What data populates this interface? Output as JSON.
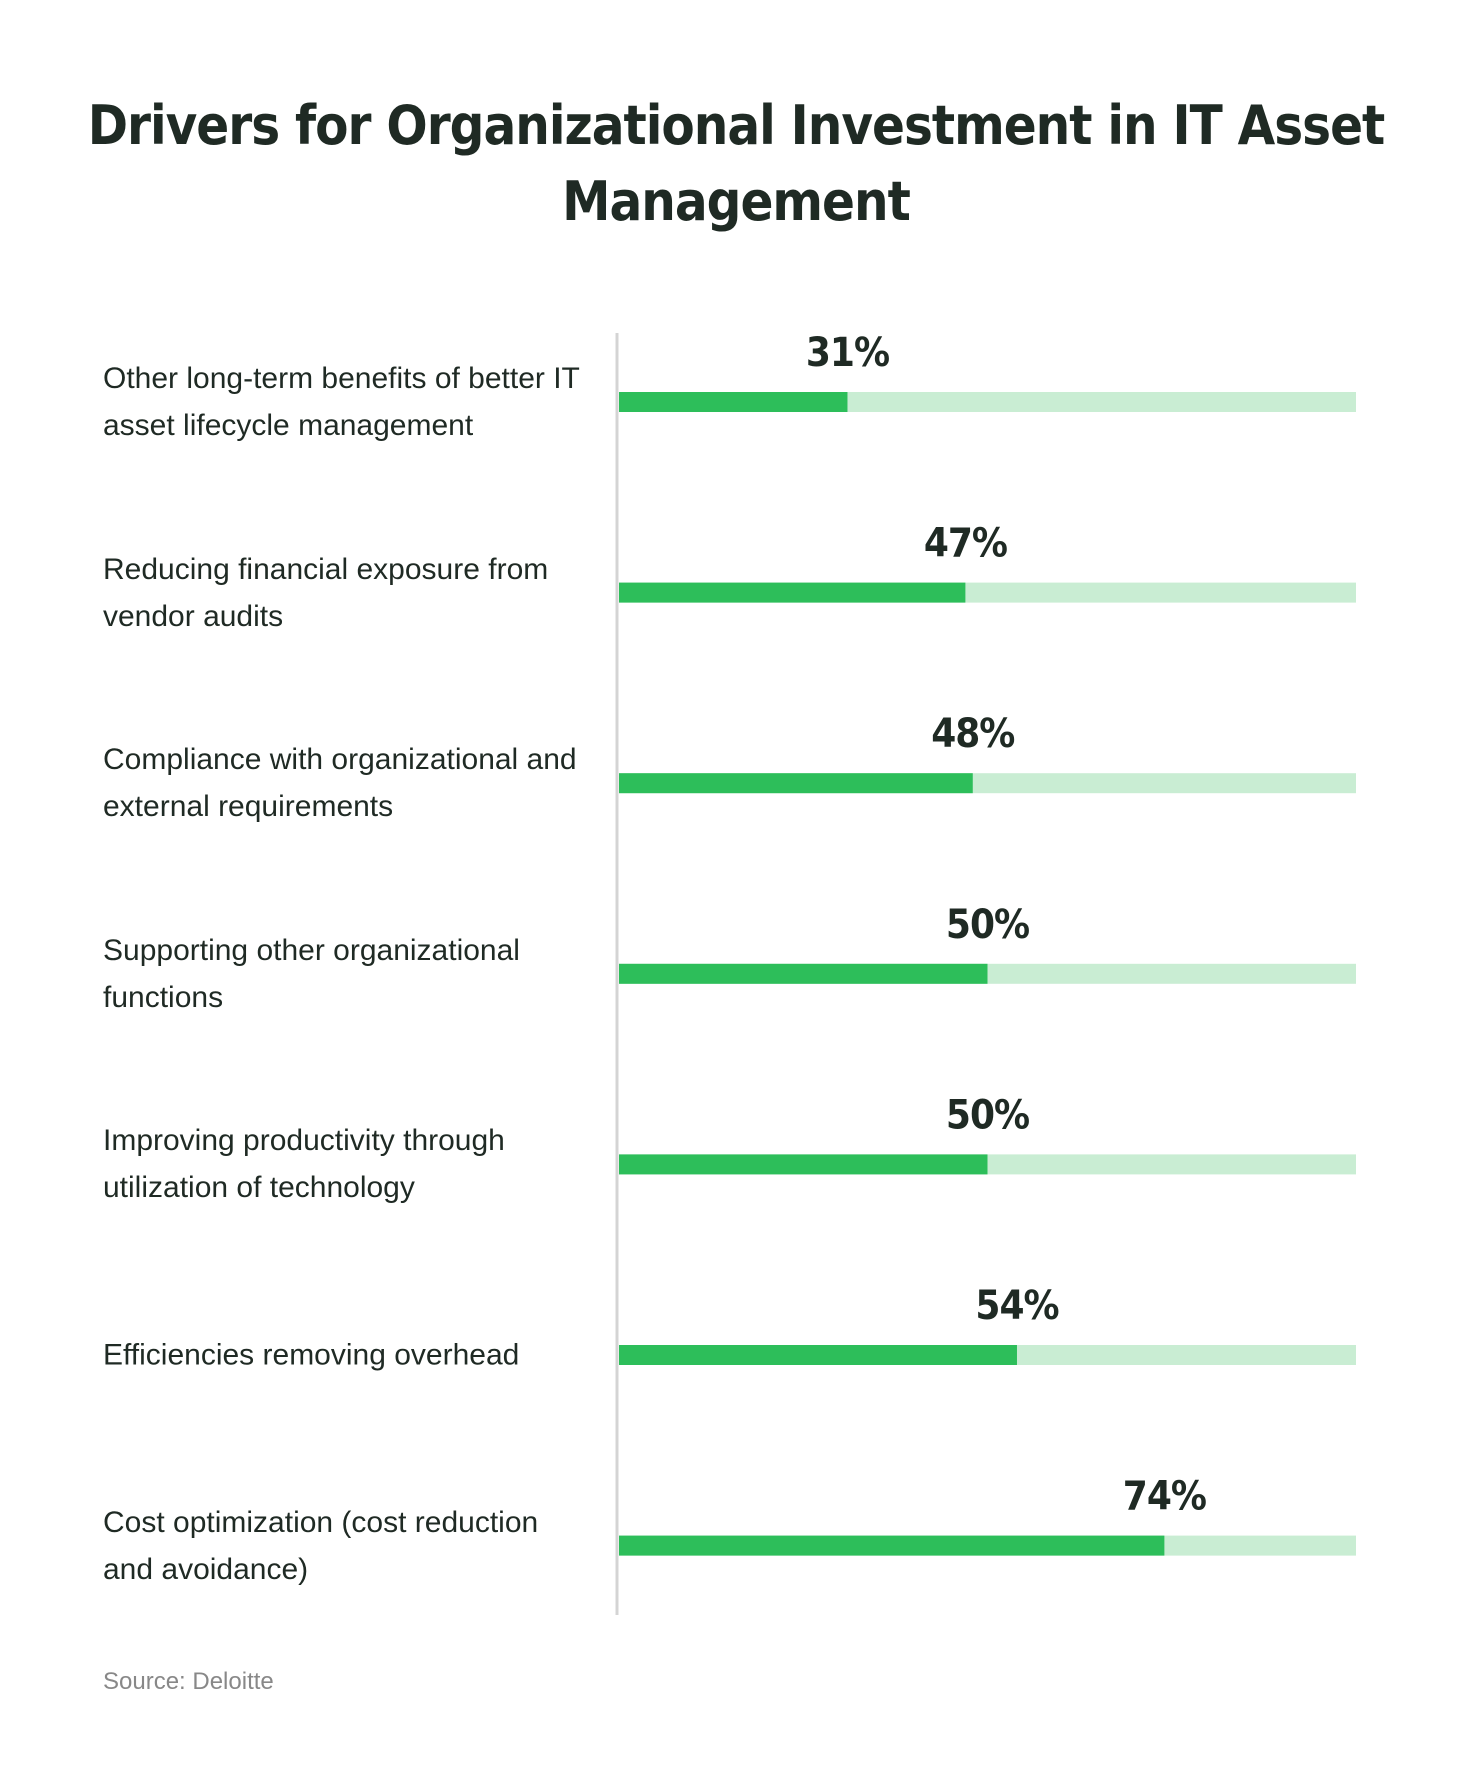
{
  "chart_data": {
    "type": "hbar",
    "title": "Drivers for Organizational Investment in IT Asset Management",
    "categories": [
      "Other long-term benefits of better IT asset lifecycle management",
      "Reducing financial exposure from vendor audits",
      "Compliance with organizational and external requirements",
      "Supporting other organizational functions",
      "Improving productivity through utilization of technology",
      "Efficiencies removing overhead",
      "Cost optimization (cost reduction and avoidance)"
    ],
    "values": [
      31,
      47,
      48,
      50,
      50,
      54,
      74
    ],
    "value_labels": [
      "31%",
      "47%",
      "48%",
      "50%",
      "50%",
      "54%",
      "74%"
    ],
    "color": "#2dbe5a",
    "track_color": "#c9edd3",
    "xlim": [
      0,
      100
    ],
    "source": "Source: Deloitte"
  }
}
